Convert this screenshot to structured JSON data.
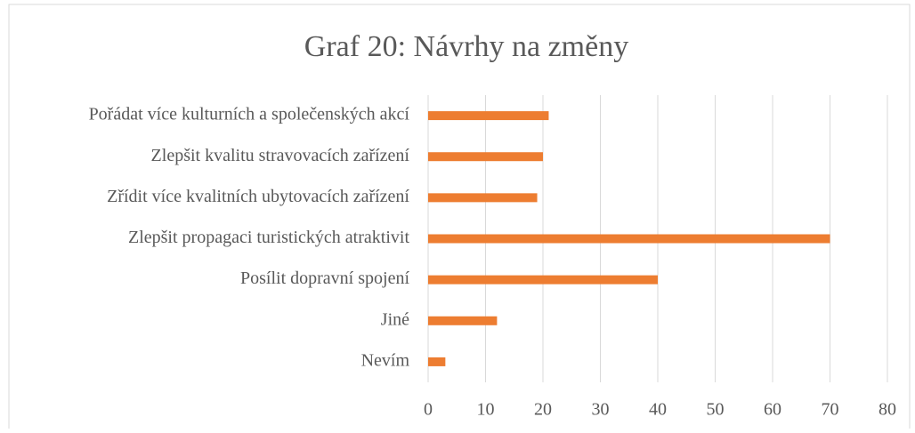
{
  "chart_data": {
    "type": "bar",
    "orientation": "horizontal",
    "title": "Graf 20: Návrhy na změny",
    "categories": [
      "Pořádat více kulturních a společenských akcí",
      "Zlepšit kvalitu stravovacích zařízení",
      "Zřídit více kvalitních ubytovacích zařízení",
      "Zlepšit propagaci turistických atraktivit",
      "Posílit dopravní spojení",
      "Jiné",
      "Nevím"
    ],
    "values": [
      21,
      20,
      19,
      70,
      40,
      12,
      3
    ],
    "color": "#ed7d31",
    "xlim": [
      0,
      80
    ],
    "xticks": [
      0,
      10,
      20,
      30,
      40,
      50,
      60,
      70,
      80
    ],
    "grid": true
  }
}
